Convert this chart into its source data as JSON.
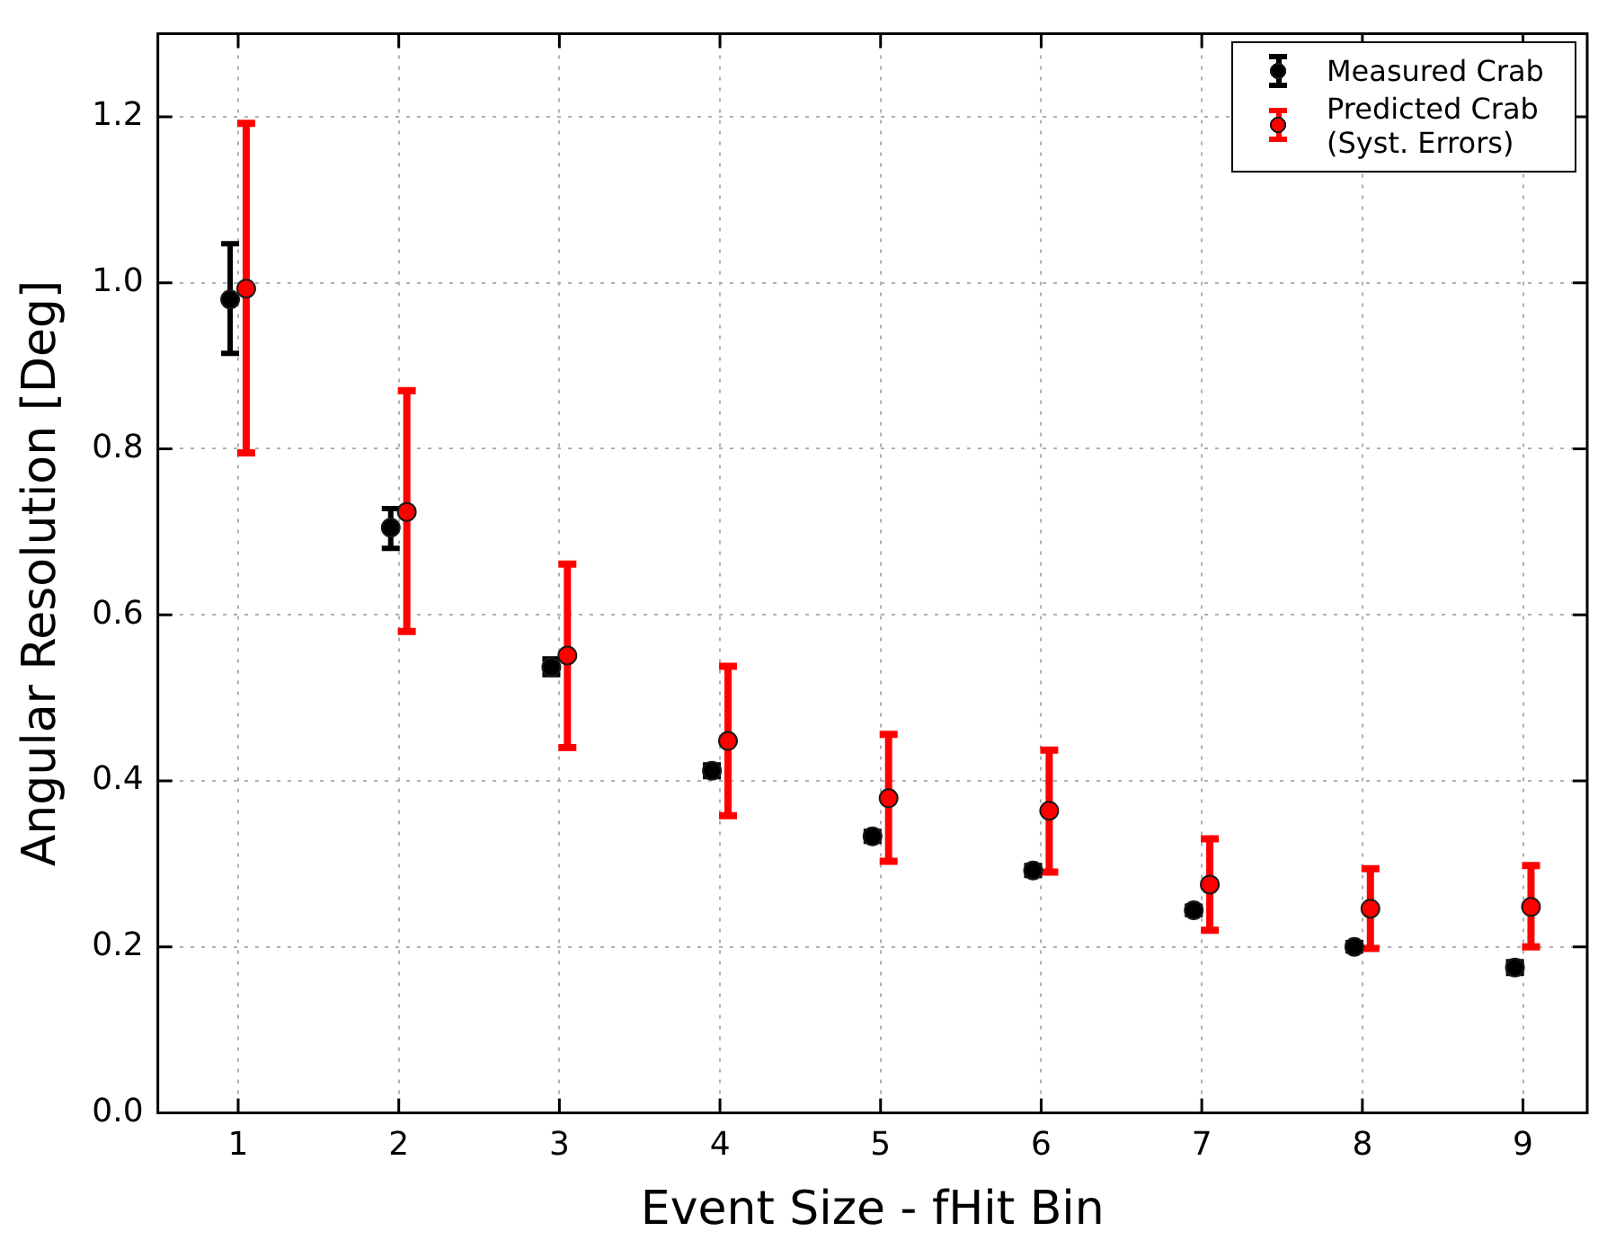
{
  "chart_data": {
    "type": "scatter",
    "xlabel": "Event Size - fHit Bin",
    "ylabel": "Angular Resolution [Deg]",
    "xlim": [
      0.5,
      9.4
    ],
    "xticks": [
      1,
      2,
      3,
      4,
      5,
      6,
      7,
      8,
      9
    ],
    "ylim": [
      0,
      1.3
    ],
    "yticks": [
      {
        "value": 0,
        "label": "0.0"
      },
      0.2,
      0.4,
      0.6,
      0.8,
      {
        "value": 1,
        "label": "1.0"
      },
      1.2
    ],
    "grid": true,
    "legend": "top right",
    "marker": "circle",
    "series": [
      {
        "name": "Measured Crab",
        "color": "#000000",
        "x": [
          0.95,
          1.95,
          2.95,
          3.95,
          4.95,
          5.95,
          6.95,
          7.95,
          8.95
        ],
        "values": [
          0.98,
          0.705,
          0.537,
          0.412,
          0.333,
          0.292,
          0.244,
          0.2,
          0.175
        ],
        "errors": [
          [
            0.915,
            1.047
          ],
          [
            0.68,
            0.728
          ],
          [
            0.528,
            0.547
          ],
          [
            0.405,
            0.419
          ],
          [
            0.327,
            0.339
          ],
          [
            0.286,
            0.298
          ],
          [
            0.239,
            0.249
          ],
          [
            0.195,
            0.205
          ],
          [
            0.168,
            0.182
          ]
        ]
      },
      {
        "name": "Predicted Crab (Syst. Errors)",
        "color": "#ff0000",
        "x": [
          1.05,
          2.05,
          3.05,
          4.05,
          5.05,
          6.05,
          7.05,
          8.05,
          9.05
        ],
        "values": [
          0.993,
          0.724,
          0.551,
          0.448,
          0.379,
          0.364,
          0.275,
          0.246,
          0.248
        ],
        "errors": [
          [
            0.795,
            1.192
          ],
          [
            0.58,
            0.87
          ],
          [
            0.44,
            0.661
          ],
          [
            0.358,
            0.538
          ],
          [
            0.303,
            0.456
          ],
          [
            0.29,
            0.437
          ],
          [
            0.22,
            0.33
          ],
          [
            0.198,
            0.294
          ],
          [
            0.2,
            0.298
          ]
        ]
      }
    ]
  }
}
